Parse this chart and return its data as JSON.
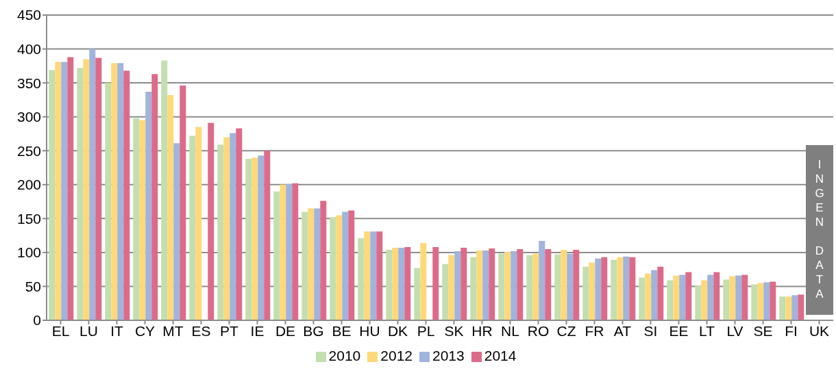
{
  "chart_data": {
    "type": "bar",
    "categories": [
      "EL",
      "LU",
      "IT",
      "CY",
      "MT",
      "ES",
      "PT",
      "IE",
      "DE",
      "BG",
      "BE",
      "HU",
      "DK",
      "PL",
      "SK",
      "HR",
      "NL",
      "RO",
      "CZ",
      "FR",
      "AT",
      "SI",
      "EE",
      "LT",
      "LV",
      "SE",
      "FI",
      "UK"
    ],
    "series": [
      {
        "name": "2010",
        "color": "#c3dfb0",
        "values": [
          369,
          372,
          350,
          298,
          383,
          272,
          259,
          238,
          190,
          160,
          152,
          121,
          104,
          77,
          83,
          93,
          98,
          96,
          97,
          79,
          89,
          63,
          59,
          51,
          60,
          53,
          35,
          null
        ]
      },
      {
        "name": "2012",
        "color": "#ffd87a",
        "values": [
          381,
          385,
          379,
          295,
          332,
          285,
          270,
          240,
          200,
          165,
          155,
          131,
          107,
          114,
          96,
          103,
          101,
          98,
          104,
          85,
          93,
          69,
          66,
          59,
          65,
          55,
          35,
          null
        ]
      },
      {
        "name": "2013",
        "color": "#a0b4dc",
        "values": [
          381,
          400,
          379,
          337,
          261,
          null,
          276,
          243,
          201,
          165,
          160,
          131,
          107,
          null,
          102,
          103,
          102,
          117,
          98,
          91,
          94,
          74,
          67,
          67,
          66,
          56,
          37,
          null
        ]
      },
      {
        "name": "2014",
        "color": "#dc6b8a",
        "values": [
          388,
          387,
          368,
          363,
          346,
          291,
          283,
          250,
          202,
          176,
          162,
          131,
          108,
          108,
          107,
          106,
          105,
          105,
          104,
          93,
          93,
          79,
          71,
          71,
          67,
          57,
          38,
          null
        ]
      }
    ],
    "ylim": [
      0,
      450
    ],
    "yticks": [
      0,
      50,
      100,
      150,
      200,
      250,
      300,
      350,
      400,
      450
    ],
    "grid": "y",
    "legend": "bottom",
    "annotations": [
      "INGEN DATA"
    ]
  }
}
